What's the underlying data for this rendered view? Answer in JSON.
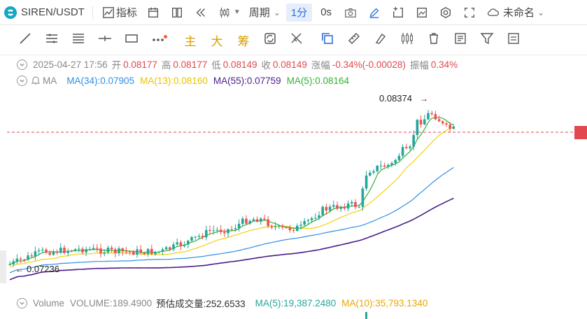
{
  "toolbar": {
    "symbol": "SIREN/USDT",
    "indicators_label": "指标",
    "period_label": "周期",
    "interval_1m": "1分",
    "interval_0s": "0s",
    "layout_name": "未命名"
  },
  "tools": {
    "main_label": "主",
    "big_label": "大",
    "chip_label": "筹"
  },
  "ohlc": {
    "time": "2025-04-27 17:56",
    "open_label": "开",
    "open": "0.08177",
    "high_label": "高",
    "high": "0.08177",
    "low_label": "低",
    "low": "0.08149",
    "close_label": "收",
    "close": "0.08149",
    "change_label": "涨幅",
    "change": "-0.34%(-0.00028)",
    "amp_label": "振幅",
    "amp": "0.34%"
  },
  "ma_row": {
    "name": "MA",
    "ma34": "MA(34):0.07905",
    "ma13": "MA(13):0.08160",
    "ma55": "MA(55):0.07759",
    "ma5": "MA(5):0.08164"
  },
  "annotations": {
    "high_price": "0.08374",
    "low_price": "0.07236"
  },
  "volume_row": {
    "name": "Volume",
    "volume": "VOLUME:189.4900",
    "est": "预估成交量:252.6533",
    "ma5": "MA(5):19,387.2480",
    "ma10": "MA(10):35,793.1340"
  },
  "colors": {
    "up": "#26a69a",
    "down": "#ef5350",
    "ma5": "#32b232",
    "ma13": "#f2d10a",
    "ma34": "#2f8fe6",
    "ma55": "#4a1d8a",
    "price_line": "#e2484f"
  }
}
